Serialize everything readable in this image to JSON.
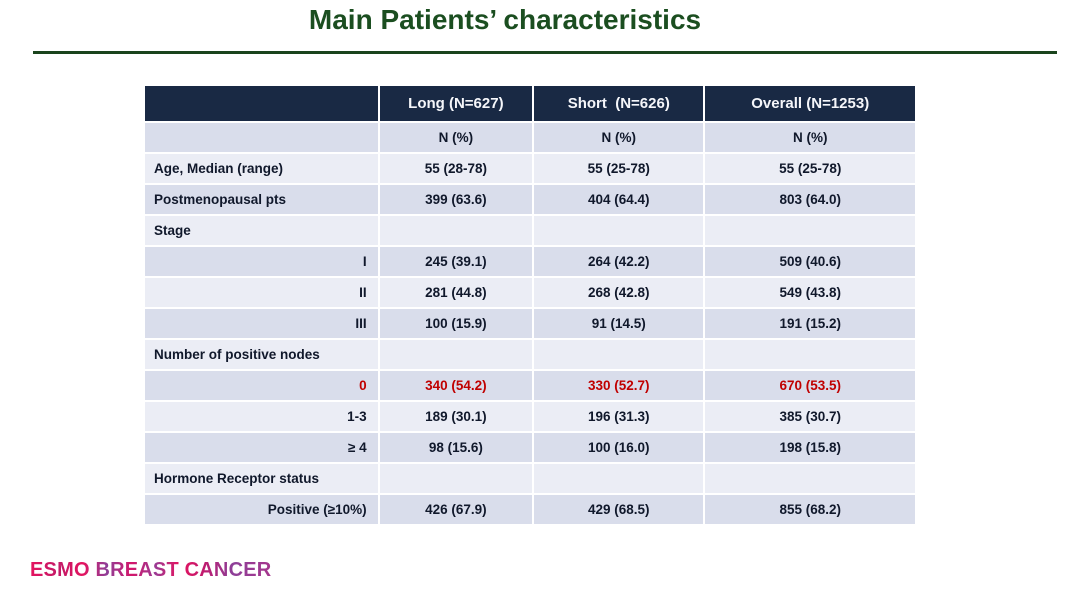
{
  "title": "Main Patients’ characteristics",
  "table": {
    "columns": [
      "",
      "Long (N=627)",
      "Short  (N=626)",
      "Overall (N=1253)"
    ],
    "rows": [
      {
        "label": "",
        "align": "left",
        "highlight": false,
        "values": [
          "N (%)",
          "N (%)",
          "N (%)"
        ]
      },
      {
        "label": "Age, Median (range)",
        "align": "left",
        "highlight": false,
        "values": [
          "55 (28-78)",
          "55 (25-78)",
          "55 (25-78)"
        ]
      },
      {
        "label": "Postmenopausal pts",
        "align": "left",
        "highlight": false,
        "values": [
          "399 (63.6)",
          "404 (64.4)",
          "803 (64.0)"
        ]
      },
      {
        "label": "Stage",
        "align": "left",
        "highlight": false,
        "values": [
          "",
          "",
          ""
        ]
      },
      {
        "label": "I",
        "align": "right",
        "highlight": false,
        "values": [
          "245 (39.1)",
          "264 (42.2)",
          "509 (40.6)"
        ]
      },
      {
        "label": "II",
        "align": "right",
        "highlight": false,
        "values": [
          "281 (44.8)",
          "268 (42.8)",
          "549 (43.8)"
        ]
      },
      {
        "label": "III",
        "align": "right",
        "highlight": false,
        "values": [
          "100 (15.9)",
          "91 (14.5)",
          "191 (15.2)"
        ]
      },
      {
        "label": "Number of positive nodes",
        "align": "left",
        "highlight": false,
        "values": [
          "",
          "",
          ""
        ]
      },
      {
        "label": "0",
        "align": "right",
        "highlight": true,
        "values": [
          "340 (54.2)",
          "330 (52.7)",
          "670 (53.5)"
        ]
      },
      {
        "label": "1-3",
        "align": "right",
        "highlight": false,
        "values": [
          "189 (30.1)",
          "196 (31.3)",
          "385 (30.7)"
        ]
      },
      {
        "label": "≥ 4",
        "align": "right",
        "highlight": false,
        "values": [
          "98 (15.6)",
          "100 (16.0)",
          "198 (15.8)"
        ]
      },
      {
        "label": "Hormone Receptor status",
        "align": "left",
        "highlight": false,
        "values": [
          "",
          "",
          ""
        ]
      },
      {
        "label": "Positive (≥10%)",
        "align": "right",
        "highlight": false,
        "values": [
          "426 (67.9)",
          "429 (68.5)",
          "855 (68.2)"
        ]
      }
    ]
  },
  "footer": {
    "logo_text": "ESMO BREAST CANCER"
  },
  "colors": {
    "title_green": "#1b4e20",
    "header_navy": "#192944",
    "band_dark": "#d9ddeb",
    "band_light": "#ebedf5",
    "highlight_red": "#c00000",
    "logo_pink": "#e5135f",
    "logo_purple": "#8d3f98"
  }
}
